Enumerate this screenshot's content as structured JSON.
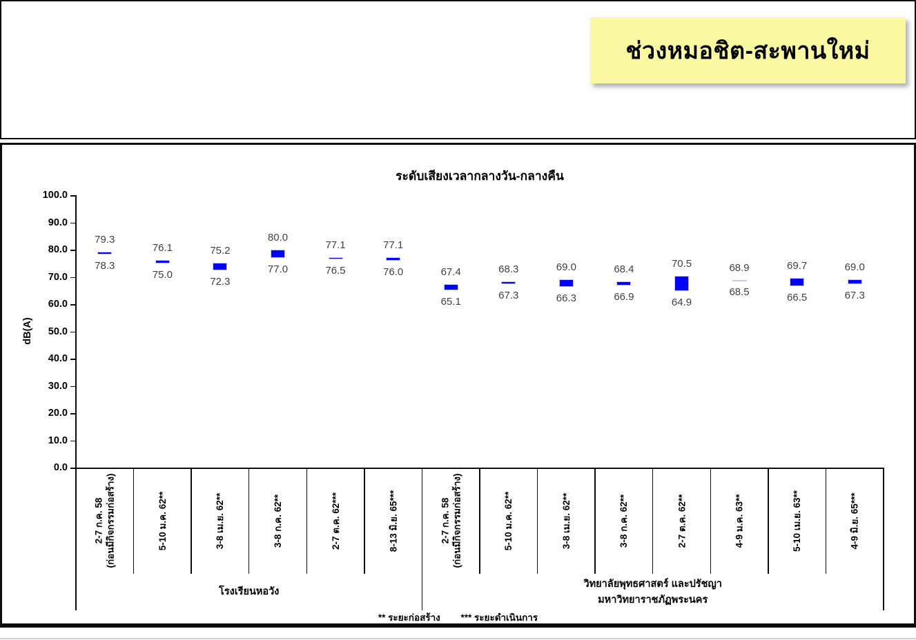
{
  "banner": {
    "text": "ช่วงหมอชิต-สะพานใหม่",
    "background_color": "#FBF8A2",
    "text_color": "#000000"
  },
  "chart_data": {
    "type": "bar",
    "subtype": "floating-min-max-range",
    "title": "ระดับเสียงเวลากลางวัน-กลางคืน",
    "xlabel": "",
    "ylabel": "dB(A)",
    "ylim": [
      0.0,
      100.0
    ],
    "ytick_step": 10.0,
    "ytick_labels": [
      "100.0",
      "90.0",
      "80.0",
      "70.0",
      "60.0",
      "50.0",
      "40.0",
      "30.0",
      "20.0",
      "10.0",
      "0.0"
    ],
    "grid": false,
    "legend": false,
    "bar_color": "#0000FF",
    "groups": [
      {
        "label_lines": [
          "โรงเรียนหอวัง"
        ],
        "span": 6
      },
      {
        "label_lines": [
          "วิทยาลัยพุทธศาสตร์ และปรัชญา",
          "มหาวิทยาราชภัฏพระนคร"
        ],
        "span": 8
      }
    ],
    "points": [
      {
        "category_lines": [
          "2-7 ก.ค. 58",
          "(ก่อนมีกิจกรรมก่อสร้าง)"
        ],
        "max": 79.3,
        "min": 78.3
      },
      {
        "category_lines": [
          "5-10 ม.ค. 62**"
        ],
        "max": 76.1,
        "min": 75.0
      },
      {
        "category_lines": [
          "3-8 เม.ย. 62**"
        ],
        "max": 75.2,
        "min": 72.3
      },
      {
        "category_lines": [
          "3-8 ก.ค. 62**"
        ],
        "max": 80.0,
        "min": 77.0
      },
      {
        "category_lines": [
          "2-7 ต.ค. 62***"
        ],
        "max": 77.1,
        "min": 76.5
      },
      {
        "category_lines": [
          "8-13 มิ.ย. 65***"
        ],
        "max": 77.1,
        "min": 76.0
      },
      {
        "category_lines": [
          "2-7 ก.ค. 58",
          "(ก่อนมีกิจกรรมก่อสร้าง)"
        ],
        "max": 67.4,
        "min": 65.1
      },
      {
        "category_lines": [
          "5-10 ม.ค. 62**"
        ],
        "max": 68.3,
        "min": 67.3
      },
      {
        "category_lines": [
          "3-8 เม.ย. 62**"
        ],
        "max": 69.0,
        "min": 66.3
      },
      {
        "category_lines": [
          "3-8 ก.ค. 62**"
        ],
        "max": 68.4,
        "min": 66.9
      },
      {
        "category_lines": [
          "2-7 ต.ค. 62**"
        ],
        "max": 70.5,
        "min": 64.9
      },
      {
        "category_lines": [
          "4-9 ม.ค. 63**"
        ],
        "max": 68.9,
        "min": 68.5
      },
      {
        "category_lines": [
          "5-10 เม.ย. 63**"
        ],
        "max": 69.7,
        "min": 66.5
      },
      {
        "category_lines": [
          "4-9 มิ.ย. 65***"
        ],
        "max": 69.0,
        "min": 67.3
      }
    ],
    "footnotes": [
      "** ระยะก่อสร้าง",
      "*** ระยะดำเนินการ"
    ]
  }
}
